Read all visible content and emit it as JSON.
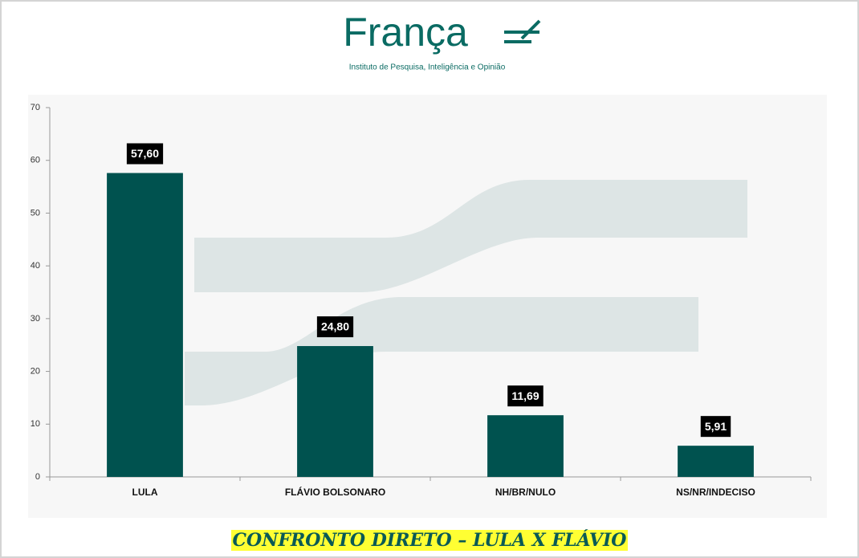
{
  "logo": {
    "name": "França",
    "tagline": "Instituto de Pesquisa, Inteligência e Opinião"
  },
  "chart_data": {
    "type": "bar",
    "title": "CONFRONTO DIRETO – LULA X FLÁVIO",
    "categories": [
      "LULA",
      "FLÁVIO BOLSONARO",
      "NH/BR/NULO",
      "NS/NR/INDECISO"
    ],
    "values": [
      57.6,
      24.8,
      11.69,
      5.91
    ],
    "value_labels": [
      "57,60",
      "24,80",
      "11,69",
      "5,91"
    ],
    "color": "#00524f",
    "ylim": [
      0,
      70
    ],
    "yticks": [
      0,
      10,
      20,
      30,
      40,
      50,
      60,
      70
    ]
  }
}
